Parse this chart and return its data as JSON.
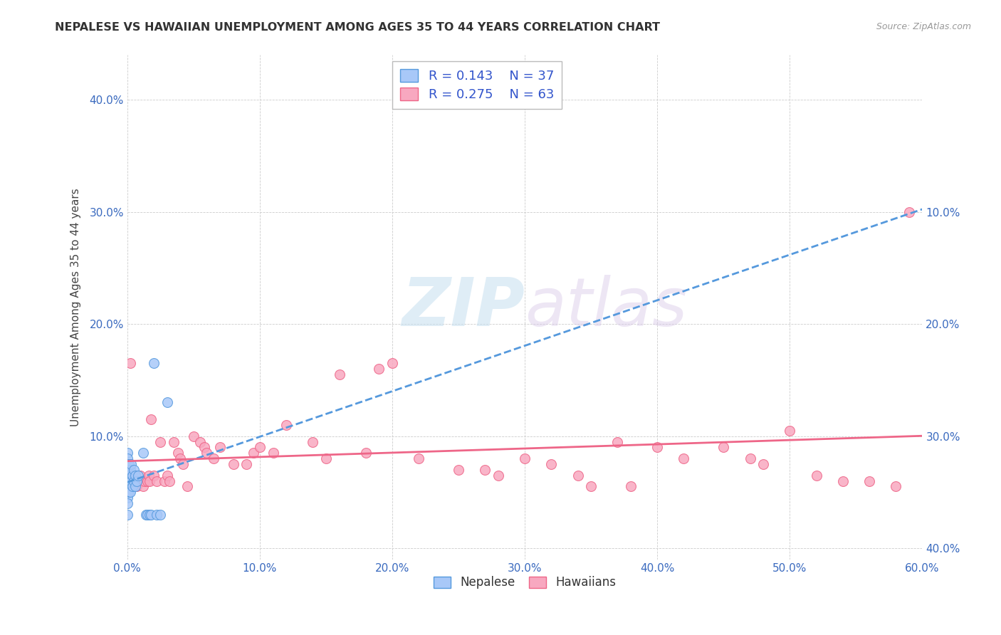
{
  "title": "NEPALESE VS HAWAIIAN UNEMPLOYMENT AMONG AGES 35 TO 44 YEARS CORRELATION CHART",
  "source": "Source: ZipAtlas.com",
  "ylabel": "Unemployment Among Ages 35 to 44 years",
  "xlim": [
    0,
    0.6
  ],
  "ylim": [
    -0.01,
    0.44
  ],
  "xticks": [
    0.0,
    0.1,
    0.2,
    0.3,
    0.4,
    0.5,
    0.6
  ],
  "yticks": [
    0.0,
    0.1,
    0.2,
    0.3,
    0.4
  ],
  "xticklabels": [
    "0.0%",
    "10.0%",
    "20.0%",
    "30.0%",
    "40.0%",
    "50.0%",
    "60.0%"
  ],
  "yticklabels": [
    "",
    "10.0%",
    "20.0%",
    "30.0%",
    "40.0%"
  ],
  "right_yticklabels": [
    "40.0%",
    "30.0%",
    "20.0%",
    "10.0%",
    ""
  ],
  "nepalese_color": "#a8c8f8",
  "hawaiian_color": "#f8a8c0",
  "nepalese_edge_color": "#5599dd",
  "hawaiian_edge_color": "#ee6688",
  "nepalese_line_color": "#5599dd",
  "hawaiian_line_color": "#ee6688",
  "nepalese_R": 0.143,
  "nepalese_N": 37,
  "hawaiian_R": 0.275,
  "hawaiian_N": 63,
  "watermark_zip": "ZIP",
  "watermark_atlas": "atlas",
  "nepalese_x": [
    0.0,
    0.0,
    0.0,
    0.0,
    0.0,
    0.0,
    0.0,
    0.0,
    0.0,
    0.0,
    0.0,
    0.001,
    0.001,
    0.001,
    0.001,
    0.002,
    0.002,
    0.002,
    0.003,
    0.003,
    0.004,
    0.004,
    0.005,
    0.005,
    0.006,
    0.006,
    0.007,
    0.008,
    0.012,
    0.014,
    0.015,
    0.017,
    0.018,
    0.02,
    0.022,
    0.025,
    0.03
  ],
  "nepalese_y": [
    0.085,
    0.08,
    0.075,
    0.07,
    0.065,
    0.06,
    0.055,
    0.05,
    0.045,
    0.04,
    0.03,
    0.075,
    0.065,
    0.058,
    0.05,
    0.07,
    0.06,
    0.05,
    0.075,
    0.06,
    0.065,
    0.055,
    0.07,
    0.06,
    0.065,
    0.055,
    0.06,
    0.065,
    0.085,
    0.03,
    0.03,
    0.03,
    0.03,
    0.165,
    0.03,
    0.03,
    0.13
  ],
  "hawaiian_x": [
    0.002,
    0.004,
    0.006,
    0.007,
    0.008,
    0.01,
    0.011,
    0.012,
    0.013,
    0.015,
    0.016,
    0.017,
    0.018,
    0.02,
    0.022,
    0.025,
    0.028,
    0.03,
    0.032,
    0.035,
    0.038,
    0.04,
    0.042,
    0.045,
    0.05,
    0.055,
    0.058,
    0.06,
    0.065,
    0.07,
    0.08,
    0.09,
    0.095,
    0.1,
    0.11,
    0.12,
    0.14,
    0.15,
    0.16,
    0.18,
    0.19,
    0.2,
    0.22,
    0.25,
    0.27,
    0.28,
    0.3,
    0.32,
    0.34,
    0.35,
    0.37,
    0.38,
    0.4,
    0.42,
    0.45,
    0.47,
    0.48,
    0.5,
    0.52,
    0.54,
    0.56,
    0.58,
    0.59
  ],
  "hawaiian_y": [
    0.165,
    0.065,
    0.06,
    0.055,
    0.06,
    0.065,
    0.06,
    0.055,
    0.06,
    0.06,
    0.065,
    0.06,
    0.115,
    0.065,
    0.06,
    0.095,
    0.06,
    0.065,
    0.06,
    0.095,
    0.085,
    0.08,
    0.075,
    0.055,
    0.1,
    0.095,
    0.09,
    0.085,
    0.08,
    0.09,
    0.075,
    0.075,
    0.085,
    0.09,
    0.085,
    0.11,
    0.095,
    0.08,
    0.155,
    0.085,
    0.16,
    0.165,
    0.08,
    0.07,
    0.07,
    0.065,
    0.08,
    0.075,
    0.065,
    0.055,
    0.095,
    0.055,
    0.09,
    0.08,
    0.09,
    0.08,
    0.075,
    0.105,
    0.065,
    0.06,
    0.06,
    0.055,
    0.3
  ]
}
